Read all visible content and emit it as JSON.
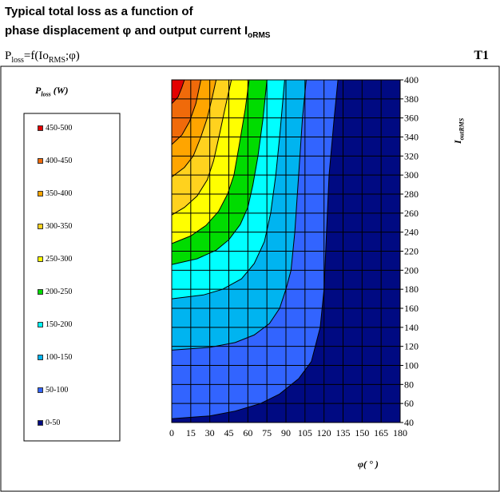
{
  "header": {
    "title_line1": "Typical total loss as a function of",
    "title_line2_prefix": "phase displacement  φ  and output current I",
    "title_line2_sub": "oRMS",
    "formula_p": "P",
    "formula_loss": "loss",
    "formula_mid": "=f(Io",
    "formula_rms": "RMS",
    "formula_end": ";φ)",
    "tag": "T1"
  },
  "chart_data": {
    "type": "heatmap",
    "title": "",
    "xlabel": "φ( ° )",
    "ylabel_main": "I",
    "ylabel_sub": "outRMS",
    "x_ticks": [
      0,
      15,
      30,
      45,
      60,
      75,
      90,
      105,
      120,
      135,
      150,
      165,
      180
    ],
    "y_ticks": [
      40,
      60,
      80,
      100,
      120,
      140,
      160,
      180,
      200,
      220,
      240,
      260,
      280,
      300,
      320,
      340,
      360,
      380,
      400
    ],
    "xlim": [
      0,
      180
    ],
    "ylim": [
      40,
      400
    ],
    "grid": true,
    "legend_title_main": "P",
    "legend_title_sub": "loss",
    "legend_title_unit": " (W)",
    "legend_placement": "left",
    "levels": [
      {
        "label": "450-500",
        "min": 450,
        "max": 500,
        "color": "#e30000"
      },
      {
        "label": "400-450",
        "min": 400,
        "max": 450,
        "color": "#f06a0a"
      },
      {
        "label": "350-400",
        "min": 350,
        "max": 400,
        "color": "#ffa500"
      },
      {
        "label": "300-350",
        "min": 300,
        "max": 350,
        "color": "#ffd21e"
      },
      {
        "label": "250-300",
        "min": 250,
        "max": 300,
        "color": "#ffff00"
      },
      {
        "label": "200-250",
        "min": 200,
        "max": 250,
        "color": "#00dc00"
      },
      {
        "label": "150-200",
        "min": 150,
        "max": 200,
        "color": "#00ffff"
      },
      {
        "label": "100-150",
        "min": 100,
        "max": 150,
        "color": "#00b4f0"
      },
      {
        "label": "50-100",
        "min": 50,
        "max": 100,
        "color": "#3264ff"
      },
      {
        "label": "0-50",
        "min": 0,
        "max": 50,
        "color": "#000a82"
      }
    ],
    "boundaries": [
      {
        "level": 50,
        "points": [
          [
            0,
            44
          ],
          [
            30,
            47
          ],
          [
            50,
            52
          ],
          [
            70,
            60
          ],
          [
            85,
            70
          ],
          [
            100,
            86
          ],
          [
            110,
            104
          ],
          [
            117,
            140
          ],
          [
            120,
            180
          ],
          [
            122,
            240
          ],
          [
            124,
            300
          ],
          [
            128,
            360
          ],
          [
            131,
            400
          ]
        ]
      },
      {
        "level": 100,
        "points": [
          [
            0,
            116
          ],
          [
            30,
            119
          ],
          [
            50,
            124
          ],
          [
            65,
            132
          ],
          [
            77,
            144
          ],
          [
            85,
            160
          ],
          [
            90,
            180
          ],
          [
            94,
            200
          ],
          [
            97,
            240
          ],
          [
            100,
            300
          ],
          [
            103,
            360
          ],
          [
            106,
            400
          ]
        ]
      },
      {
        "level": 150,
        "points": [
          [
            0,
            170
          ],
          [
            25,
            174
          ],
          [
            40,
            180
          ],
          [
            55,
            191
          ],
          [
            65,
            207
          ],
          [
            73,
            230
          ],
          [
            78,
            260
          ],
          [
            82,
            300
          ],
          [
            85,
            340
          ],
          [
            89,
            400
          ]
        ]
      },
      {
        "level": 200,
        "points": [
          [
            0,
            206
          ],
          [
            20,
            212
          ],
          [
            35,
            221
          ],
          [
            45,
            232
          ],
          [
            54,
            248
          ],
          [
            60,
            266
          ],
          [
            64,
            290
          ],
          [
            68,
            320
          ],
          [
            72,
            360
          ],
          [
            75,
            400
          ]
        ]
      },
      {
        "level": 250,
        "points": [
          [
            0,
            228
          ],
          [
            15,
            236
          ],
          [
            27,
            247
          ],
          [
            37,
            262
          ],
          [
            44,
            280
          ],
          [
            49,
            300
          ],
          [
            53,
            330
          ],
          [
            58,
            370
          ],
          [
            61,
            400
          ]
        ]
      },
      {
        "level": 300,
        "points": [
          [
            0,
            258
          ],
          [
            10,
            266
          ],
          [
            20,
            278
          ],
          [
            28,
            295
          ],
          [
            33,
            315
          ],
          [
            38,
            345
          ],
          [
            42,
            370
          ],
          [
            47,
            400
          ]
        ]
      },
      {
        "level": 350,
        "points": [
          [
            0,
            298
          ],
          [
            10,
            308
          ],
          [
            17,
            320
          ],
          [
            23,
            340
          ],
          [
            28,
            360
          ],
          [
            32,
            382
          ],
          [
            35,
            400
          ]
        ]
      },
      {
        "level": 400,
        "points": [
          [
            0,
            332
          ],
          [
            8,
            342
          ],
          [
            14,
            356
          ],
          [
            19,
            375
          ],
          [
            23,
            400
          ]
        ]
      },
      {
        "level": 450,
        "points": [
          [
            0,
            375
          ],
          [
            5,
            382
          ],
          [
            8,
            392
          ],
          [
            10,
            400
          ]
        ]
      }
    ]
  }
}
